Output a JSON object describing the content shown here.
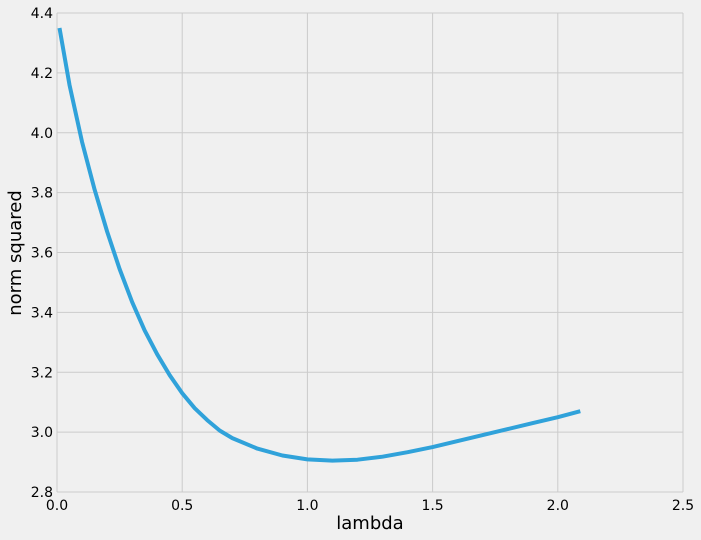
{
  "chart_data": {
    "type": "line",
    "title": "",
    "xlabel": "lambda",
    "ylabel": "norm squared",
    "xlim": [
      0.0,
      2.5
    ],
    "ylim": [
      2.8,
      4.4
    ],
    "xticks": [
      "0.0",
      "0.5",
      "1.0",
      "1.5",
      "2.0",
      "2.5"
    ],
    "yticks": [
      "2.8",
      "3.0",
      "3.2",
      "3.4",
      "3.6",
      "3.8",
      "4.0",
      "4.2",
      "4.4"
    ],
    "grid": true,
    "legend": "none",
    "series": [
      {
        "color": "#30a2da",
        "x": [
          0.01,
          0.05,
          0.1,
          0.15,
          0.2,
          0.25,
          0.3,
          0.35,
          0.4,
          0.45,
          0.5,
          0.55,
          0.6,
          0.65,
          0.7,
          0.8,
          0.9,
          1.0,
          1.1,
          1.2,
          1.3,
          1.4,
          1.5,
          1.6,
          1.7,
          1.8,
          1.9,
          2.0,
          2.09
        ],
        "y": [
          4.35,
          4.16,
          3.97,
          3.81,
          3.67,
          3.545,
          3.435,
          3.34,
          3.26,
          3.19,
          3.13,
          3.08,
          3.04,
          3.005,
          2.98,
          2.945,
          2.922,
          2.909,
          2.905,
          2.908,
          2.918,
          2.933,
          2.95,
          2.97,
          2.99,
          3.01,
          3.03,
          3.05,
          3.07
        ]
      }
    ]
  }
}
